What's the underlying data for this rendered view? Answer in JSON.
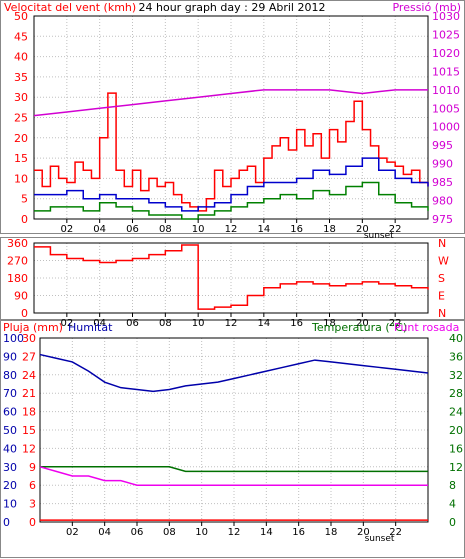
{
  "colors": {
    "wind": "#ff0000",
    "wind_avg": "#0000cc",
    "wind_min": "#008000",
    "pressure": "#d200d2",
    "direction": "#ff0000",
    "rain": "#ff0000",
    "humidity": "#0000aa",
    "temperature": "#007000",
    "dewpoint": "#ee00ee",
    "grid": "#c0c0c0",
    "frame": "#000000"
  },
  "chart_data": [
    {
      "type": "line",
      "title": "24 hour graph day : 29 Abril 2012",
      "left_label": "Velocitat del vent (kmh)",
      "right_label": "Pressió (mb)",
      "x_ticks": [
        "02",
        "04",
        "06",
        "08",
        "10",
        "12",
        "14",
        "16",
        "18",
        "20",
        "22"
      ],
      "x_extra_tick": "sunset",
      "x_range": [
        0,
        24
      ],
      "y_left_ticks": [
        "0",
        "5",
        "10",
        "15",
        "20",
        "25",
        "30",
        "35",
        "40",
        "45",
        "50"
      ],
      "y_left_range": [
        0,
        50
      ],
      "y_right_ticks": [
        "975",
        "980",
        "985",
        "990",
        "995",
        "1000",
        "1005",
        "1010",
        "1015",
        "1020",
        "1025",
        "1030"
      ],
      "y_right_range": [
        975,
        1030
      ],
      "series": [
        {
          "key": "gust",
          "axis": "left",
          "color_key": "wind",
          "x": [
            0,
            0.5,
            1,
            1.5,
            2,
            2.5,
            3,
            3.5,
            4,
            4.5,
            5,
            5.5,
            6,
            6.5,
            7,
            7.5,
            8,
            8.5,
            9,
            9.5,
            10,
            10.5,
            11,
            11.5,
            12,
            12.5,
            13,
            13.5,
            14,
            14.5,
            15,
            15.5,
            16,
            16.5,
            17,
            17.5,
            18,
            18.5,
            19,
            19.5,
            20,
            20.5,
            21,
            21.5,
            22,
            22.5,
            23,
            23.5,
            24
          ],
          "values": [
            12,
            8,
            13,
            10,
            9,
            14,
            12,
            10,
            20,
            31,
            12,
            8,
            12,
            7,
            10,
            8,
            9,
            6,
            4,
            3,
            2,
            5,
            12,
            8,
            10,
            12,
            13,
            9,
            15,
            18,
            20,
            17,
            22,
            18,
            21,
            15,
            22,
            19,
            24,
            29,
            22,
            18,
            15,
            14,
            13,
            11,
            12,
            9,
            8
          ]
        },
        {
          "key": "average",
          "axis": "left",
          "color_key": "wind_avg",
          "x": [
            0,
            1,
            2,
            3,
            4,
            5,
            6,
            7,
            8,
            9,
            10,
            11,
            12,
            13,
            14,
            15,
            16,
            17,
            18,
            19,
            20,
            21,
            22,
            23,
            24
          ],
          "values": [
            6,
            6,
            7,
            5,
            6,
            5,
            5,
            4,
            3,
            2,
            3,
            4,
            6,
            8,
            9,
            9,
            10,
            12,
            11,
            13,
            15,
            12,
            10,
            9,
            8
          ]
        },
        {
          "key": "minimum",
          "axis": "left",
          "color_key": "wind_min",
          "x": [
            0,
            1,
            2,
            3,
            4,
            5,
            6,
            7,
            8,
            9,
            10,
            11,
            12,
            13,
            14,
            15,
            16,
            17,
            18,
            19,
            20,
            21,
            22,
            23,
            24
          ],
          "values": [
            2,
            3,
            3,
            2,
            4,
            3,
            2,
            1,
            1,
            0,
            1,
            2,
            3,
            4,
            5,
            6,
            5,
            7,
            6,
            8,
            9,
            6,
            4,
            3,
            2
          ]
        },
        {
          "key": "pressure",
          "axis": "right",
          "color_key": "pressure",
          "x": [
            0,
            2,
            4,
            6,
            8,
            10,
            12,
            14,
            16,
            18,
            20,
            22,
            24
          ],
          "values": [
            1003,
            1004,
            1005,
            1006,
            1007,
            1008,
            1009,
            1010,
            1010,
            1010,
            1009,
            1010,
            1010
          ]
        }
      ]
    },
    {
      "type": "line",
      "title": "",
      "right_labels": [
        "N",
        "W",
        "S",
        "E",
        "N"
      ],
      "x_ticks": [
        "02",
        "04",
        "06",
        "08",
        "10",
        "12",
        "14",
        "16",
        "18",
        "20",
        "22"
      ],
      "x_range": [
        0,
        24
      ],
      "y_left_ticks": [
        "0",
        "90",
        "180",
        "270",
        "360"
      ],
      "y_range": [
        0,
        360
      ],
      "series": [
        {
          "key": "direction",
          "color_key": "direction",
          "x": [
            0,
            1,
            2,
            3,
            4,
            5,
            6,
            7,
            8,
            9,
            10,
            11,
            12,
            13,
            14,
            15,
            16,
            17,
            18,
            19,
            20,
            21,
            22,
            23,
            24
          ],
          "values": [
            340,
            300,
            280,
            270,
            260,
            270,
            280,
            300,
            320,
            350,
            20,
            30,
            40,
            90,
            130,
            150,
            160,
            150,
            140,
            150,
            160,
            150,
            140,
            130,
            120
          ]
        }
      ]
    },
    {
      "type": "line",
      "title": "",
      "labels": {
        "rain": "Pluja (mm)",
        "humidity": "Humitat",
        "temp_dew": "Temperatura (°C)Punt rosada"
      },
      "x_ticks": [
        "02",
        "04",
        "06",
        "08",
        "10",
        "12",
        "14",
        "16",
        "18",
        "20",
        "22"
      ],
      "x_extra_tick": "sunset",
      "x_range": [
        0,
        24
      ],
      "y_left_outer_ticks": [
        "0",
        "10",
        "20",
        "30",
        "40",
        "50",
        "60",
        "70",
        "80",
        "90",
        "100"
      ],
      "y_left_inner_ticks": [
        "0",
        "3",
        "6",
        "9",
        "12",
        "15",
        "18",
        "21",
        "24",
        "27",
        "30"
      ],
      "y_right_ticks": [
        "0",
        "4",
        "8",
        "12",
        "16",
        "20",
        "24",
        "28",
        "32",
        "36",
        "40"
      ],
      "y_left_range": [
        0,
        100
      ],
      "y_right_range": [
        0,
        40
      ],
      "series": [
        {
          "key": "humidity",
          "axis": "left",
          "color_key": "humidity",
          "x": [
            0,
            1,
            2,
            3,
            4,
            5,
            6,
            7,
            8,
            9,
            10,
            11,
            12,
            13,
            14,
            15,
            16,
            17,
            18,
            19,
            20,
            21,
            22,
            23,
            24
          ],
          "values": [
            91,
            89,
            87,
            82,
            76,
            73,
            72,
            71,
            72,
            74,
            75,
            76,
            78,
            80,
            82,
            84,
            86,
            88,
            87,
            86,
            85,
            84,
            83,
            82,
            81
          ]
        },
        {
          "key": "rain",
          "axis": "left",
          "color_key": "rain",
          "x": [
            0,
            6,
            12,
            18,
            24
          ],
          "values": [
            1,
            1,
            1,
            1,
            1
          ]
        },
        {
          "key": "temperature",
          "axis": "right",
          "color_key": "temperature",
          "x": [
            0,
            1,
            2,
            3,
            4,
            5,
            6,
            7,
            8,
            9,
            10,
            11,
            12,
            13,
            14,
            15,
            16,
            17,
            18,
            19,
            20,
            21,
            22,
            23,
            24
          ],
          "values": [
            12,
            12,
            12,
            12,
            12,
            12,
            12,
            12,
            12,
            11,
            11,
            11,
            11,
            11,
            11,
            11,
            11,
            11,
            11,
            11,
            11,
            11,
            11,
            11,
            11
          ]
        },
        {
          "key": "dewpoint",
          "axis": "right",
          "color_key": "dewpoint",
          "x": [
            0,
            1,
            2,
            3,
            4,
            5,
            6,
            7,
            8,
            9,
            10,
            11,
            12,
            13,
            14,
            15,
            16,
            17,
            18,
            19,
            20,
            21,
            22,
            23,
            24
          ],
          "values": [
            12,
            11,
            10,
            10,
            9,
            9,
            8,
            8,
            8,
            8,
            8,
            8,
            8,
            8,
            8,
            8,
            8,
            8,
            8,
            8,
            8,
            8,
            8,
            8,
            8
          ]
        }
      ]
    }
  ]
}
